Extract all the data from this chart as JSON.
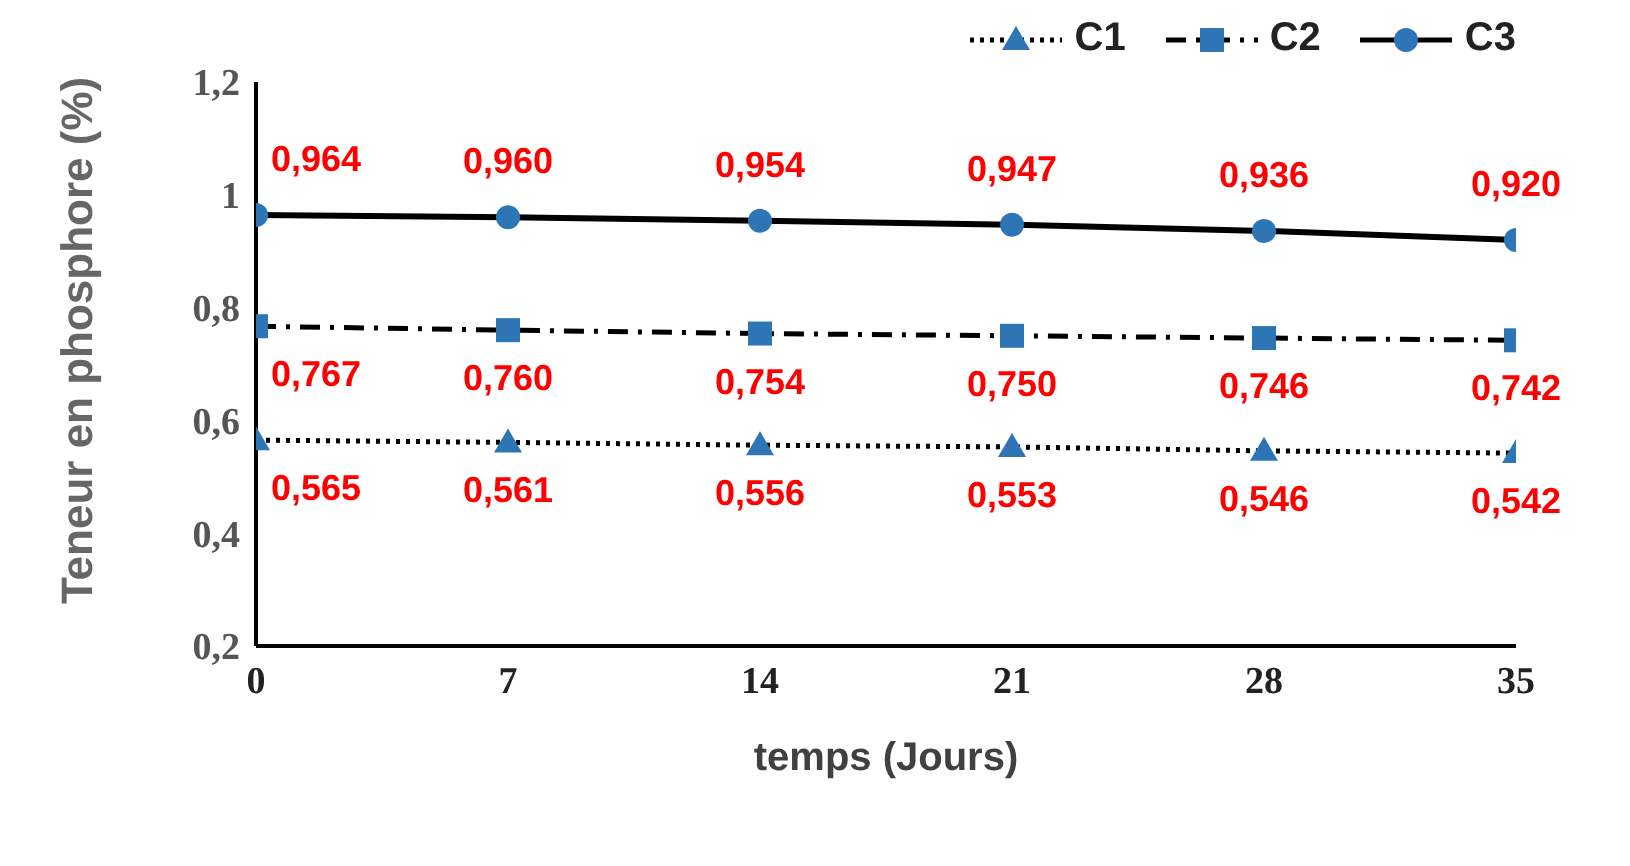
{
  "chart_data": {
    "type": "line",
    "xlabel": "temps (Jours)",
    "ylabel": "Teneur en phosphore (%)",
    "x": [
      0,
      7,
      14,
      21,
      28,
      35
    ],
    "xlim": [
      0,
      35
    ],
    "xticks": [
      0,
      7,
      14,
      21,
      28,
      35
    ],
    "ylim": [
      0.2,
      1.2
    ],
    "yticks": [
      {
        "value": 0.2,
        "label": "0,2"
      },
      {
        "value": 0.4,
        "label": "0,4"
      },
      {
        "value": 0.6,
        "label": "0,6"
      },
      {
        "value": 0.8,
        "label": "0,8"
      },
      {
        "value": 1,
        "label": "1"
      },
      {
        "value": 1.2,
        "label": "1,2"
      }
    ],
    "grid": false,
    "legend": "top right",
    "series": [
      {
        "name": "C1",
        "color": "#2e75b6",
        "marker": "triangle",
        "line_style": "dotted",
        "values": [
          0.565,
          0.561,
          0.556,
          0.553,
          0.546,
          0.542
        ],
        "value_labels": [
          "0,565",
          "0,561",
          "0,556",
          "0,553",
          "0,546",
          "0,542"
        ]
      },
      {
        "name": "C2",
        "color": "#2e75b6",
        "marker": "square",
        "line_style": "dashed",
        "values": [
          0.767,
          0.76,
          0.754,
          0.75,
          0.746,
          0.742
        ],
        "value_labels": [
          "0,767",
          "0,760",
          "0,754",
          "0,750",
          "0,746",
          "0,742"
        ]
      },
      {
        "name": "C3",
        "color": "#2e75b6",
        "marker": "circle",
        "line_style": "solid",
        "values": [
          0.964,
          0.96,
          0.954,
          0.947,
          0.936,
          0.92
        ],
        "value_labels": [
          "0,964",
          "0,960",
          "0,954",
          "0,947",
          "0,936",
          "0,920"
        ]
      }
    ]
  }
}
